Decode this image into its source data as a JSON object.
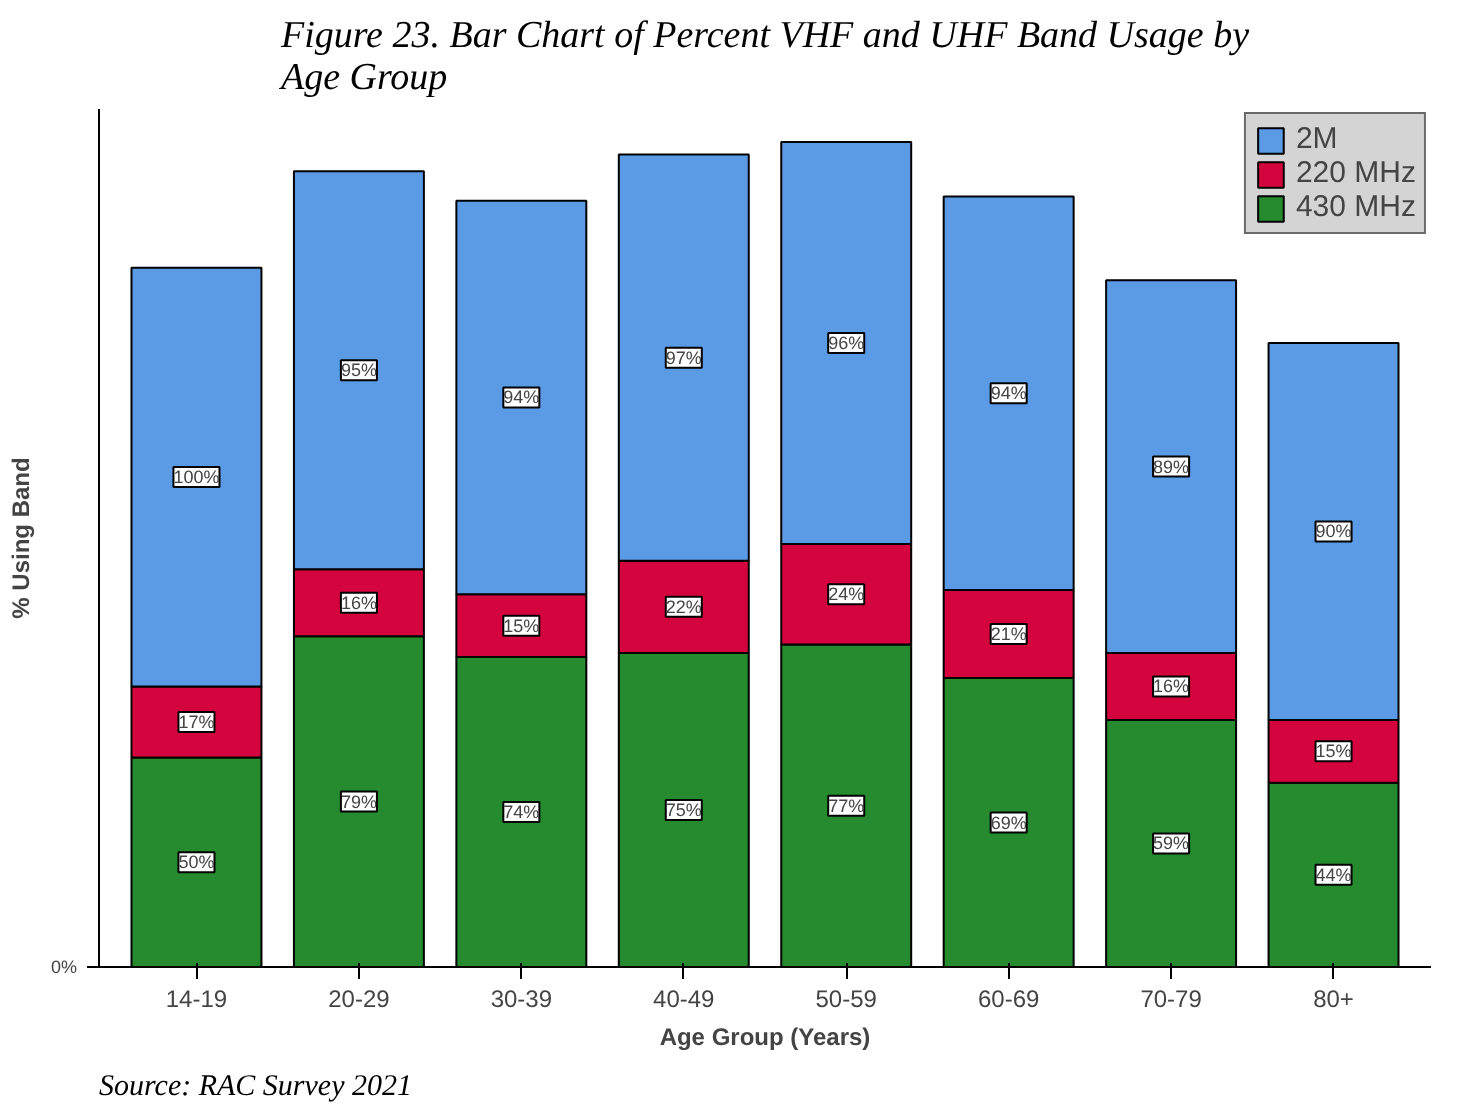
{
  "chart_data": {
    "type": "bar",
    "stacked": true,
    "title": "Figure 23. Bar Chart of Percent VHF and UHF Band Usage by Age Group",
    "xlabel": "Age Group (Years)",
    "ylabel": "% Using Band",
    "categories": [
      "14-19",
      "20-29",
      "30-39",
      "40-49",
      "50-59",
      "60-69",
      "70-79",
      "80+"
    ],
    "series": [
      {
        "name": "430 MHz",
        "color": "#268a2e",
        "values": [
          50,
          79,
          74,
          75,
          77,
          69,
          59,
          44
        ],
        "value_labels": [
          "50%",
          "79%",
          "74%",
          "75%",
          "77%",
          "69%",
          "59%",
          "44%"
        ]
      },
      {
        "name": "220 MHz",
        "color": "#d4053e",
        "values": [
          17,
          16,
          15,
          22,
          24,
          21,
          16,
          15
        ],
        "value_labels": [
          "17%",
          "16%",
          "15%",
          "22%",
          "24%",
          "21%",
          "16%",
          "15%"
        ]
      },
      {
        "name": "2M",
        "color": "#5b9be6",
        "values": [
          100,
          95,
          94,
          97,
          96,
          94,
          89,
          90
        ],
        "value_labels": [
          "100%",
          "95%",
          "94%",
          "97%",
          "96%",
          "94%",
          "89%",
          "90%"
        ]
      }
    ],
    "legend": "top right",
    "annotations": [
      "0%",
      "Source: RAC Survey 2021"
    ]
  }
}
